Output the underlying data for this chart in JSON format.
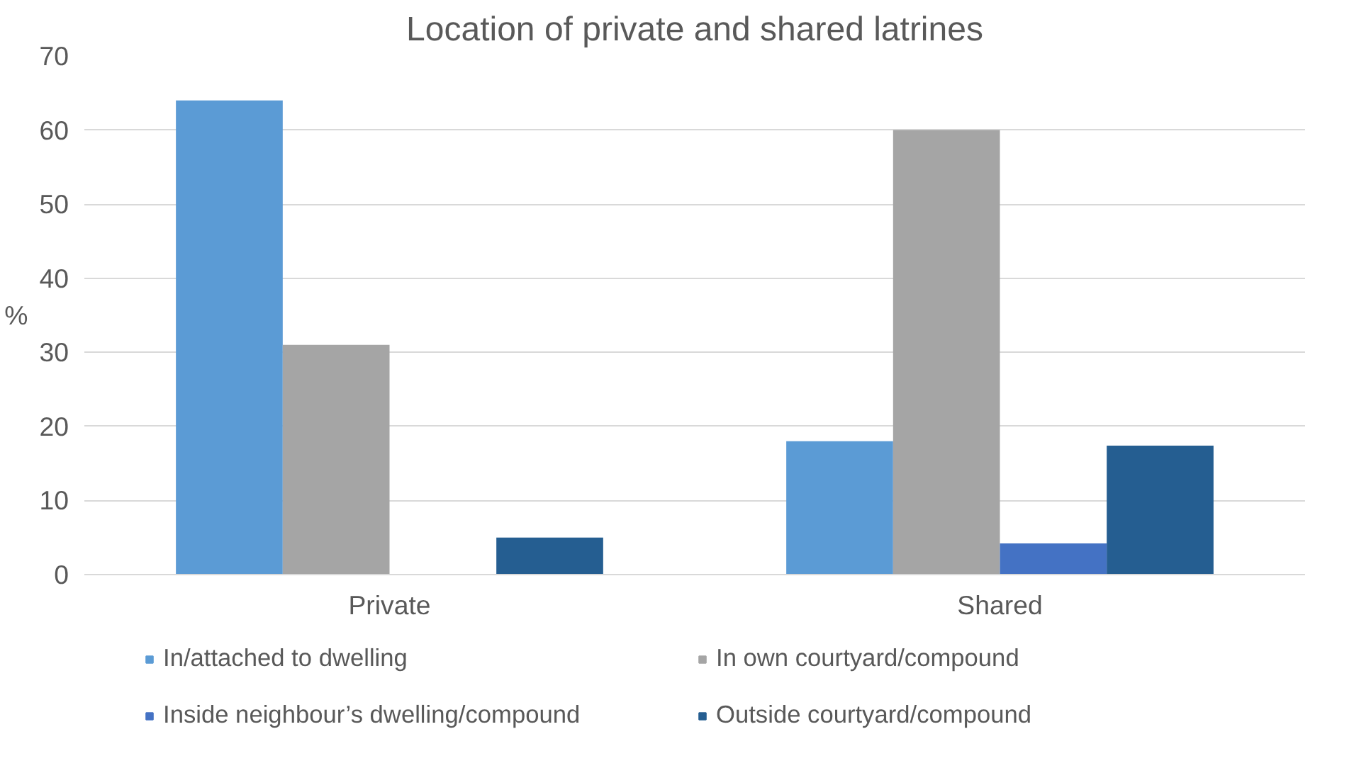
{
  "chart_data": {
    "type": "bar",
    "title": "Location of private and shared latrines",
    "ylabel": "%",
    "categories": [
      "Private",
      "Shared"
    ],
    "series": [
      {
        "name": "In/attached to dwelling",
        "color": "#5b9bd5",
        "values": [
          64,
          18
        ]
      },
      {
        "name": "In own courtyard/compound",
        "color": "#a5a5a5",
        "values": [
          31,
          60
        ]
      },
      {
        "name": "Inside neighbour’s dwelling/compound",
        "color": "#4472c4",
        "values": [
          0,
          4.2
        ]
      },
      {
        "name": "Outside courtyard/compound",
        "color": "#255e91",
        "values": [
          5,
          17.4
        ]
      }
    ],
    "ylim": [
      0,
      70
    ],
    "yticks": [
      0,
      10,
      20,
      30,
      40,
      50,
      60,
      70
    ],
    "grid": "y",
    "legend": "bottom"
  }
}
